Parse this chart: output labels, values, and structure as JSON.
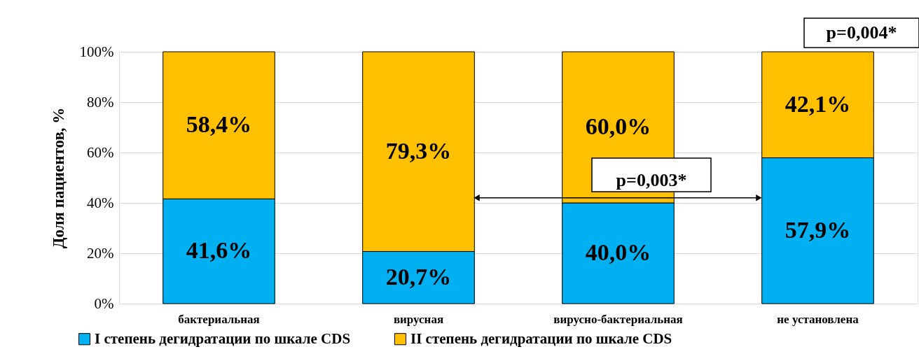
{
  "chart_data": {
    "type": "bar",
    "stacked": true,
    "ylabel": "Доля пациентов, %",
    "categories": [
      "бактериальная",
      "вирусная",
      "вирусно-бактериальная",
      "не установлена"
    ],
    "series": [
      {
        "name": "I степень дегидратации по шкале CDS",
        "color": "#00b0f0",
        "values": [
          41.6,
          20.7,
          40.0,
          57.9
        ],
        "value_labels": [
          "41,6%",
          "20,7%",
          "40,0%",
          "57,9%"
        ]
      },
      {
        "name": "II степень дегидратации по шкале CDS",
        "color": "#ffc000",
        "values": [
          58.4,
          79.3,
          60.0,
          42.1
        ],
        "value_labels": [
          "58,4%",
          "79,3%",
          "60,0%",
          "42,1%"
        ]
      }
    ],
    "ylim": [
      0,
      100
    ],
    "yticks": [
      {
        "value": 0,
        "label": "0%"
      },
      {
        "value": 20,
        "label": "20%"
      },
      {
        "value": 40,
        "label": "40%"
      },
      {
        "value": 60,
        "label": "60%"
      },
      {
        "value": 80,
        "label": "80%"
      },
      {
        "value": 100,
        "label": "100%"
      }
    ],
    "grid": "y",
    "legend": "bottom",
    "annotations": [
      "p=0,003*",
      "p=0,004*"
    ]
  }
}
